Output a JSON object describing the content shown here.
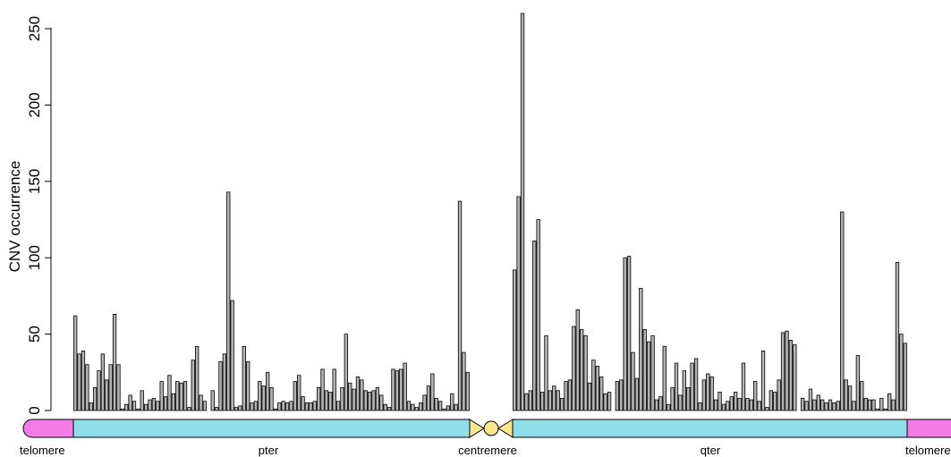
{
  "chart_data": {
    "type": "bar",
    "ylabel": "CNV occurrence",
    "ylim": [
      0,
      260
    ],
    "y_ticks": [
      "0",
      "50",
      "100",
      "150",
      "200",
      "250"
    ],
    "grid": false,
    "series": [
      {
        "region": "pter",
        "values": [
          62,
          37,
          39,
          30,
          5,
          15,
          26,
          37,
          20,
          30,
          63,
          30,
          1,
          4,
          10,
          6,
          1,
          13,
          4,
          7,
          8,
          6,
          19,
          9,
          23,
          11,
          19,
          18,
          19,
          2,
          33,
          42,
          10,
          6,
          0,
          13,
          2,
          32,
          37,
          143,
          72,
          2,
          3,
          42,
          32,
          5,
          6,
          19,
          16,
          25,
          15,
          1,
          5,
          6,
          5,
          6,
          19,
          23,
          9,
          5,
          5,
          6,
          15,
          27,
          13,
          12,
          27,
          6,
          15,
          50,
          18,
          14,
          22,
          20,
          13,
          12,
          13,
          15,
          10,
          4,
          2,
          27,
          26,
          27,
          31,
          6,
          4,
          2,
          5,
          10,
          16,
          24,
          8,
          6,
          1,
          3,
          11,
          4,
          137,
          38,
          25
        ]
      },
      {
        "region": "qter",
        "values": [
          92,
          140,
          260,
          11,
          13,
          111,
          125,
          12,
          49,
          13,
          16,
          13,
          8,
          19,
          20,
          55,
          66,
          53,
          49,
          18,
          33,
          29,
          22,
          11,
          12,
          0,
          19,
          20,
          100,
          101,
          38,
          21,
          80,
          53,
          45,
          49,
          7,
          9,
          42,
          4,
          15,
          31,
          10,
          26,
          15,
          31,
          34,
          5,
          20,
          24,
          22,
          7,
          12,
          4,
          6,
          9,
          12,
          8,
          31,
          8,
          7,
          19,
          6,
          39,
          2,
          13,
          12,
          20,
          51,
          52,
          46,
          43,
          0,
          8,
          6,
          14,
          7,
          10,
          7,
          5,
          7,
          5,
          6,
          130,
          20,
          16,
          6,
          36,
          19,
          8,
          7,
          7,
          1,
          8,
          1,
          11,
          7,
          97,
          50,
          44
        ]
      }
    ],
    "ideogram": {
      "labels": {
        "telomere_left": "telomere",
        "pter": "pter",
        "centromere": "centremere",
        "qter": "qter",
        "telomere_right": "telomere"
      },
      "colors": {
        "telomere": "#f57be6",
        "arm": "#8fdcea",
        "centromere": "#fbe88e",
        "bar_fill": "#b4b4b4",
        "bar_stroke": "#000000"
      }
    }
  }
}
